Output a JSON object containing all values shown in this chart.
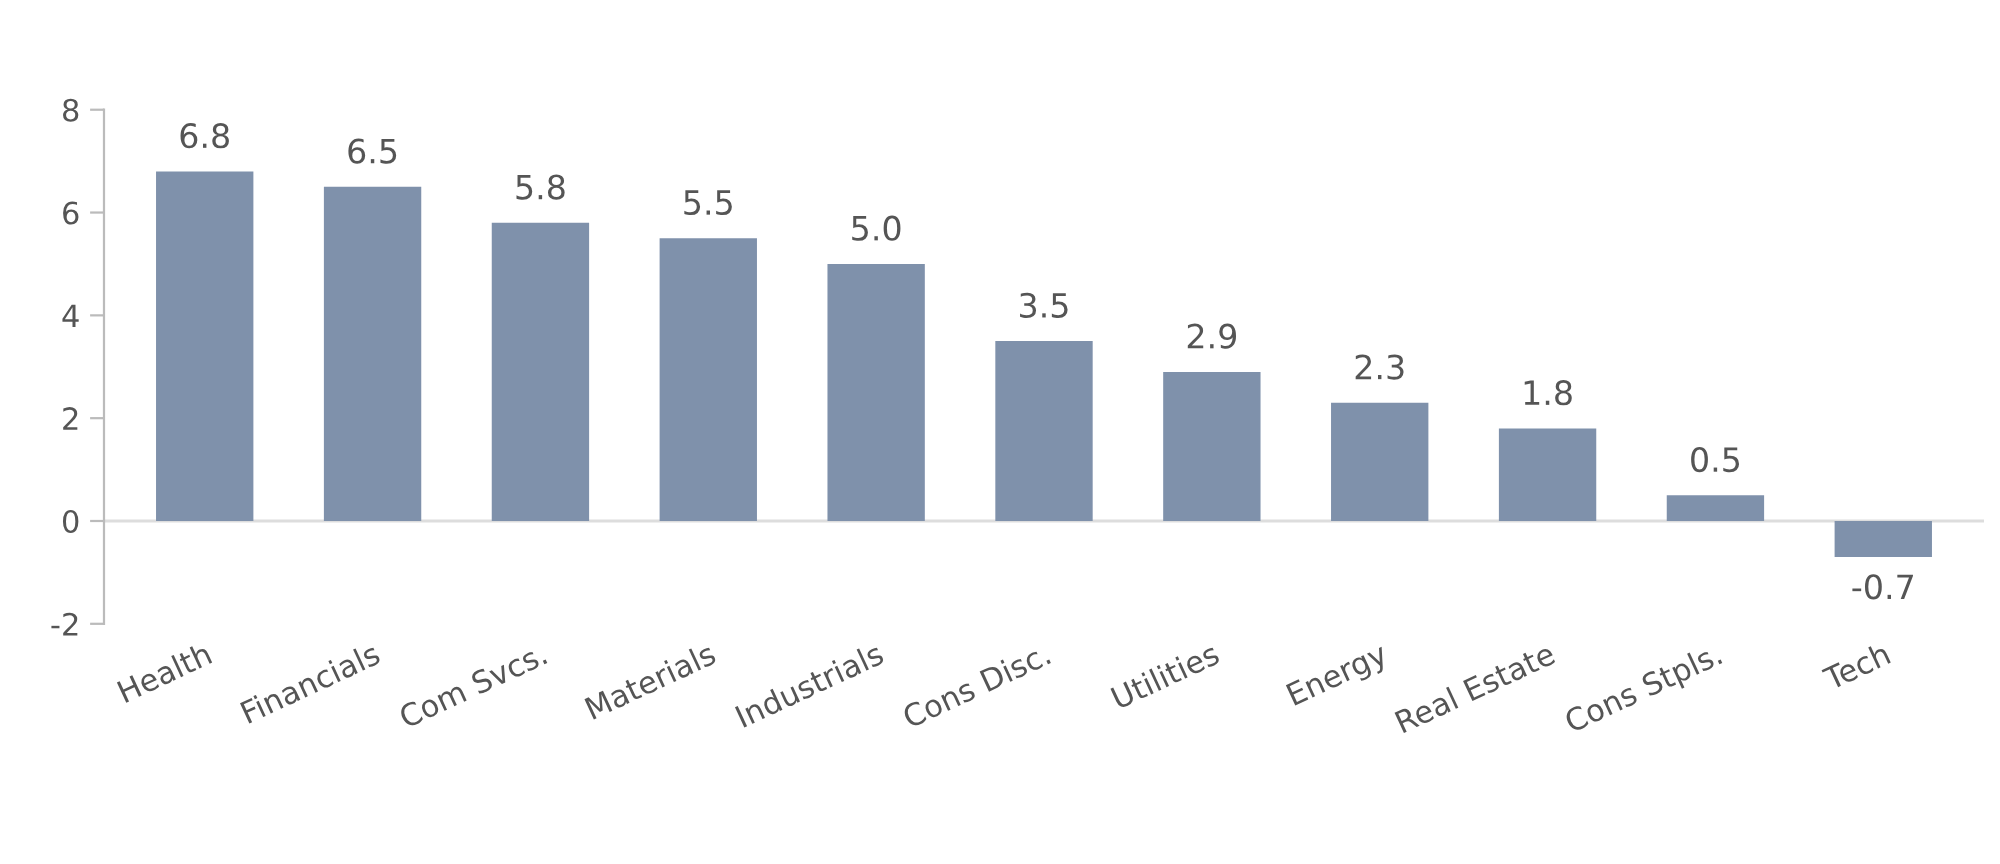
{
  "chart_data": {
    "type": "bar",
    "categories": [
      "Health",
      "Financials",
      "Com Svcs.",
      "Materials",
      "Industrials",
      "Cons Disc.",
      "Utilities",
      "Energy",
      "Real Estate",
      "Cons Stpls.",
      "Tech"
    ],
    "values": [
      6.8,
      6.5,
      5.8,
      5.5,
      5.0,
      3.5,
      2.9,
      2.3,
      1.8,
      0.5,
      -0.7
    ],
    "value_labels": [
      "6.8",
      "6.5",
      "5.8",
      "5.5",
      "5.0",
      "3.5",
      "2.9",
      "2.3",
      "1.8",
      "0.5",
      "-0.7"
    ],
    "color": "#7f91ab",
    "ylim": [
      -2,
      8
    ],
    "yticks": [
      -2,
      0,
      2,
      4,
      6,
      8
    ],
    "ref_lines": [
      {
        "axis": "y",
        "value": 0,
        "color": "#dddddd"
      }
    ],
    "grid": false,
    "legend": false
  }
}
